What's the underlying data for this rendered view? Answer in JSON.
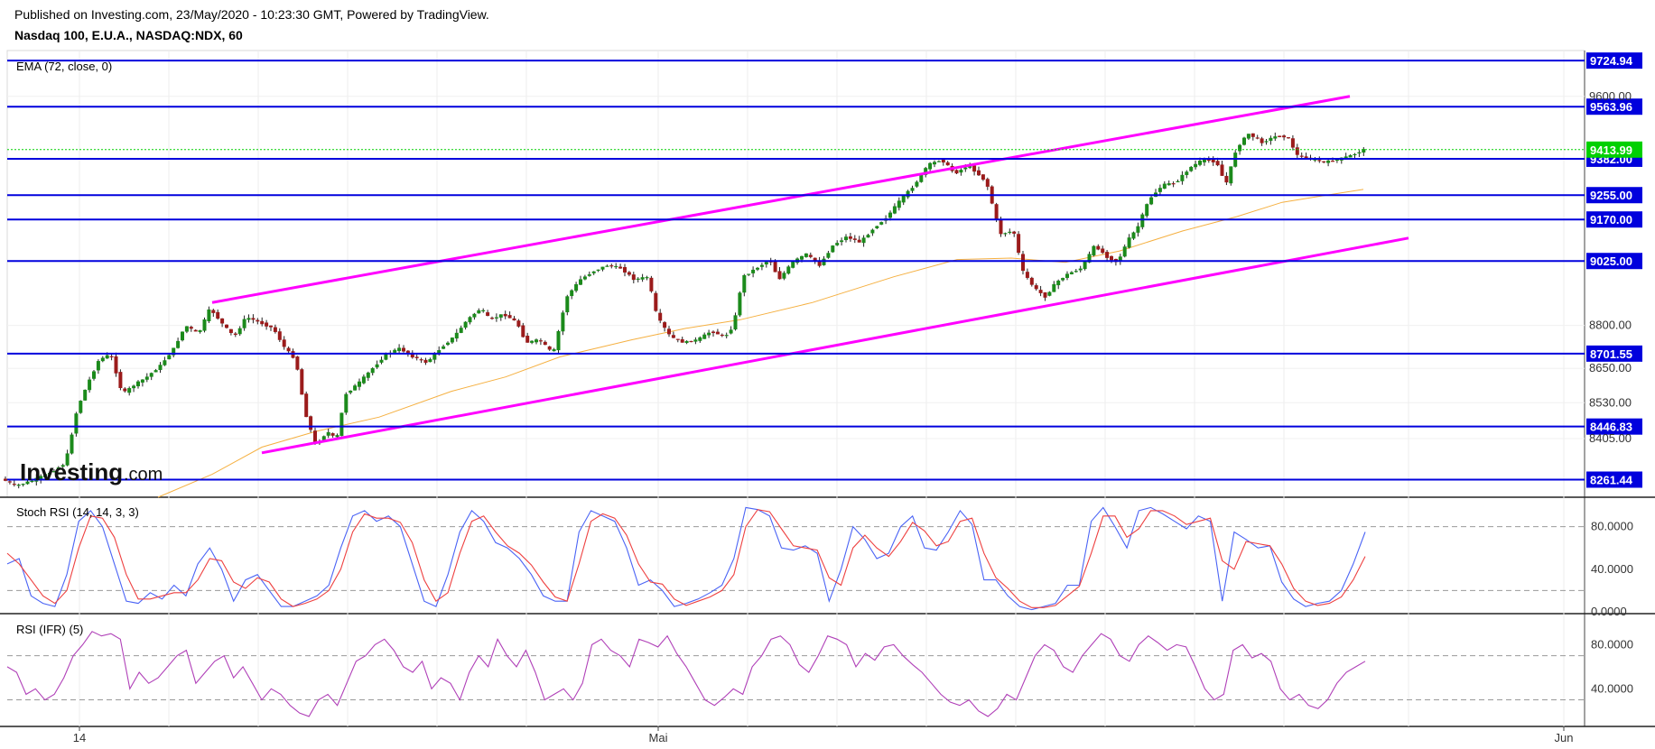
{
  "header": {
    "published": "Published on Investing.com, 23/May/2020 - 10:23:30 GMT, Powered by TradingView.",
    "symbol": "Nasdaq 100, E.U.A., NASDAQ:NDX, 60"
  },
  "logo": {
    "main": "Investing",
    "suffix": ".com"
  },
  "chart_data": [
    {
      "type": "line",
      "title": "EMA (72, close, 0)",
      "y_ticks": [
        "9600.00",
        "8800.00",
        "8650.00",
        "8530.00",
        "8405.00"
      ],
      "ylim": [
        8200,
        9760
      ],
      "x_ticks": [
        "14",
        "Mai",
        "Jun"
      ],
      "last_price": "9413.99",
      "levels": [
        {
          "label": "9724.94",
          "value": 9724.94
        },
        {
          "label": "9563.96",
          "value": 9563.96
        },
        {
          "label": "9382.00",
          "value": 9382.0
        },
        {
          "label": "9255.00",
          "value": 9255.0
        },
        {
          "label": "9170.00",
          "value": 9170.0
        },
        {
          "label": "9025.00",
          "value": 9025.0
        },
        {
          "label": "8701.55",
          "value": 8701.55
        },
        {
          "label": "8446.83",
          "value": 8446.83
        },
        {
          "label": "8261.44",
          "value": 8261.44
        }
      ],
      "colors": {
        "level": "#0000dd",
        "channel": "#ff00ff",
        "ema": "#f5b041",
        "up": "#1b8a1b",
        "down": "#9b1b1b",
        "last": "#00d000"
      },
      "channel": {
        "upper": [
          [
            235,
            8880
          ],
          [
            1495,
            9600
          ]
        ],
        "lower": [
          [
            290,
            8355
          ],
          [
            1560,
            9105
          ]
        ]
      },
      "ema": [
        [
          175,
          8200
        ],
        [
          235,
          8280
        ],
        [
          290,
          8375
        ],
        [
          350,
          8430
        ],
        [
          420,
          8480
        ],
        [
          500,
          8570
        ],
        [
          560,
          8620
        ],
        [
          620,
          8690
        ],
        [
          700,
          8750
        ],
        [
          760,
          8790
        ],
        [
          820,
          8820
        ],
        [
          900,
          8880
        ],
        [
          990,
          8970
        ],
        [
          1060,
          9030
        ],
        [
          1120,
          9035
        ],
        [
          1180,
          9020
        ],
        [
          1240,
          9060
        ],
        [
          1310,
          9130
        ],
        [
          1370,
          9180
        ],
        [
          1420,
          9230
        ],
        [
          1460,
          9250
        ],
        [
          1510,
          9275
        ]
      ],
      "price_path": [
        [
          0,
          8270
        ],
        [
          20,
          8240
        ],
        [
          40,
          8260
        ],
        [
          60,
          8290
        ],
        [
          75,
          8320
        ],
        [
          88,
          8510
        ],
        [
          100,
          8600
        ],
        [
          112,
          8680
        ],
        [
          125,
          8700
        ],
        [
          138,
          8560
        ],
        [
          150,
          8590
        ],
        [
          165,
          8620
        ],
        [
          180,
          8660
        ],
        [
          195,
          8720
        ],
        [
          208,
          8800
        ],
        [
          222,
          8770
        ],
        [
          235,
          8860
        ],
        [
          250,
          8800
        ],
        [
          262,
          8760
        ],
        [
          275,
          8830
        ],
        [
          290,
          8810
        ],
        [
          305,
          8790
        ],
        [
          318,
          8720
        ],
        [
          330,
          8680
        ],
        [
          340,
          8500
        ],
        [
          352,
          8380
        ],
        [
          365,
          8430
        ],
        [
          375,
          8400
        ],
        [
          385,
          8560
        ],
        [
          400,
          8600
        ],
        [
          415,
          8650
        ],
        [
          430,
          8700
        ],
        [
          445,
          8720
        ],
        [
          460,
          8690
        ],
        [
          475,
          8670
        ],
        [
          490,
          8720
        ],
        [
          505,
          8760
        ],
        [
          520,
          8820
        ],
        [
          535,
          8860
        ],
        [
          545,
          8820
        ],
        [
          560,
          8840
        ],
        [
          575,
          8810
        ],
        [
          585,
          8740
        ],
        [
          600,
          8750
        ],
        [
          615,
          8700
        ],
        [
          630,
          8900
        ],
        [
          645,
          8960
        ],
        [
          660,
          8990
        ],
        [
          675,
          9010
        ],
        [
          690,
          9000
        ],
        [
          705,
          8960
        ],
        [
          720,
          8970
        ],
        [
          730,
          8830
        ],
        [
          745,
          8760
        ],
        [
          760,
          8740
        ],
        [
          775,
          8750
        ],
        [
          790,
          8780
        ],
        [
          805,
          8760
        ],
        [
          815,
          8800
        ],
        [
          825,
          8970
        ],
        [
          840,
          9000
        ],
        [
          855,
          9030
        ],
        [
          865,
          8960
        ],
        [
          880,
          9020
        ],
        [
          895,
          9050
        ],
        [
          910,
          9010
        ],
        [
          925,
          9080
        ],
        [
          940,
          9110
        ],
        [
          955,
          9090
        ],
        [
          970,
          9140
        ],
        [
          985,
          9180
        ],
        [
          1000,
          9240
        ],
        [
          1015,
          9290
        ],
        [
          1030,
          9360
        ],
        [
          1045,
          9380
        ],
        [
          1060,
          9330
        ],
        [
          1075,
          9360
        ],
        [
          1095,
          9300
        ],
        [
          1110,
          9120
        ],
        [
          1125,
          9130
        ],
        [
          1135,
          8990
        ],
        [
          1148,
          8930
        ],
        [
          1160,
          8900
        ],
        [
          1172,
          8950
        ],
        [
          1185,
          8980
        ],
        [
          1200,
          9000
        ],
        [
          1215,
          9080
        ],
        [
          1228,
          9040
        ],
        [
          1240,
          9020
        ],
        [
          1252,
          9100
        ],
        [
          1262,
          9140
        ],
        [
          1275,
          9240
        ],
        [
          1290,
          9290
        ],
        [
          1305,
          9300
        ],
        [
          1320,
          9350
        ],
        [
          1335,
          9380
        ],
        [
          1350,
          9370
        ],
        [
          1360,
          9290
        ],
        [
          1372,
          9420
        ],
        [
          1385,
          9470
        ],
        [
          1400,
          9440
        ],
        [
          1415,
          9460
        ],
        [
          1428,
          9460
        ],
        [
          1440,
          9390
        ],
        [
          1455,
          9380
        ],
        [
          1470,
          9370
        ],
        [
          1485,
          9380
        ],
        [
          1500,
          9395
        ],
        [
          1512,
          9413
        ]
      ]
    },
    {
      "type": "line",
      "title": "Stoch RSI (14, 14, 3, 3)",
      "y_ticks": [
        "80.0000",
        "40.0000",
        "0.0000"
      ],
      "ylim": [
        0,
        100
      ],
      "guides": [
        80,
        20
      ],
      "series": [
        {
          "color": "#4a63f5",
          "values": [
            45,
            50,
            15,
            8,
            5,
            35,
            85,
            95,
            80,
            45,
            10,
            8,
            18,
            12,
            25,
            15,
            45,
            60,
            40,
            10,
            30,
            35,
            20,
            5,
            5,
            10,
            15,
            25,
            60,
            90,
            95,
            85,
            90,
            80,
            45,
            10,
            5,
            35,
            75,
            95,
            85,
            65,
            60,
            50,
            35,
            15,
            10,
            10,
            75,
            95,
            90,
            85,
            60,
            25,
            30,
            20,
            5,
            8,
            12,
            18,
            25,
            50,
            98,
            96,
            90,
            60,
            58,
            62,
            55,
            10,
            40,
            80,
            68,
            50,
            55,
            80,
            90,
            60,
            58,
            75,
            95,
            82,
            30,
            30,
            15,
            5,
            2,
            5,
            8,
            25,
            25,
            85,
            98,
            80,
            60,
            95,
            98,
            92,
            85,
            78,
            90,
            85,
            10,
            75,
            68,
            60,
            62,
            28,
            12,
            5,
            8,
            10,
            20,
            45,
            75
          ]
        },
        {
          "color": "#ee4040",
          "values": [
            55,
            45,
            30,
            15,
            8,
            20,
            60,
            90,
            88,
            70,
            35,
            12,
            12,
            15,
            18,
            18,
            30,
            50,
            48,
            28,
            22,
            32,
            28,
            12,
            5,
            8,
            12,
            20,
            40,
            75,
            92,
            88,
            88,
            84,
            65,
            30,
            10,
            18,
            55,
            85,
            90,
            75,
            62,
            55,
            44,
            28,
            14,
            10,
            45,
            85,
            92,
            88,
            72,
            45,
            28,
            26,
            12,
            6,
            10,
            14,
            20,
            35,
            80,
            96,
            94,
            78,
            62,
            60,
            58,
            32,
            25,
            60,
            72,
            60,
            52,
            66,
            84,
            76,
            62,
            66,
            85,
            88,
            55,
            32,
            22,
            10,
            4,
            4,
            6,
            15,
            24,
            55,
            90,
            90,
            70,
            78,
            95,
            95,
            90,
            82,
            85,
            88,
            48,
            40,
            66,
            64,
            62,
            45,
            22,
            10,
            6,
            8,
            14,
            30,
            52
          ]
        }
      ]
    },
    {
      "type": "line",
      "title": "RSI (IFR) (5)",
      "y_ticks": [
        "80.0000",
        "40.0000"
      ],
      "ylim": [
        10,
        100
      ],
      "guides": [
        70,
        30
      ],
      "series": [
        {
          "color": "#b040b8",
          "values": [
            60,
            55,
            35,
            40,
            30,
            35,
            50,
            70,
            80,
            92,
            88,
            90,
            85,
            40,
            55,
            45,
            50,
            60,
            70,
            75,
            45,
            55,
            65,
            70,
            50,
            60,
            45,
            30,
            40,
            35,
            25,
            18,
            15,
            30,
            35,
            25,
            45,
            65,
            70,
            80,
            85,
            75,
            60,
            55,
            65,
            40,
            50,
            45,
            30,
            55,
            70,
            60,
            85,
            70,
            60,
            75,
            55,
            30,
            35,
            40,
            30,
            45,
            80,
            85,
            75,
            70,
            60,
            85,
            82,
            78,
            88,
            72,
            60,
            45,
            30,
            25,
            32,
            40,
            35,
            60,
            70,
            85,
            88,
            80,
            62,
            55,
            70,
            88,
            85,
            80,
            60,
            72,
            66,
            78,
            80,
            70,
            62,
            55,
            45,
            35,
            28,
            25,
            30,
            20,
            15,
            22,
            35,
            30,
            50,
            70,
            80,
            75,
            60,
            55,
            70,
            80,
            90,
            85,
            70,
            65,
            80,
            88,
            82,
            75,
            80,
            78,
            60,
            40,
            30,
            35,
            75,
            80,
            68,
            72,
            65,
            40,
            30,
            35,
            25,
            22,
            30,
            45,
            55,
            60,
            65
          ]
        }
      ]
    }
  ]
}
